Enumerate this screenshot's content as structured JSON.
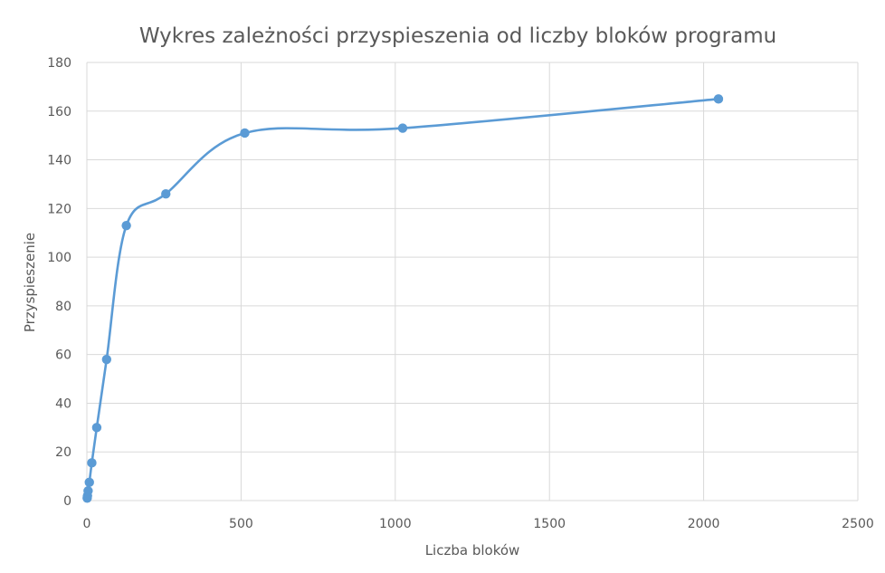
{
  "chart_data": {
    "type": "scatter",
    "title": "Wykres zależności przyspieszenia od liczby bloków programu",
    "xlabel": "Liczba bloków",
    "ylabel": "Przyspieszenie",
    "xlim": [
      0,
      2500
    ],
    "ylim": [
      0,
      180
    ],
    "xticks": [
      "0",
      "500",
      "1000",
      "1500",
      "2000",
      "2500"
    ],
    "yticks": [
      "0",
      "20",
      "40",
      "60",
      "80",
      "100",
      "120",
      "140",
      "160",
      "180"
    ],
    "grid": true,
    "legend": "none",
    "line_style": "smooth",
    "series": [
      {
        "color": "#5b9bd5",
        "x": [
          1,
          2,
          4,
          8,
          16,
          32,
          64,
          128,
          256,
          512,
          1024,
          2048
        ],
        "y": [
          1,
          2,
          4,
          7.5,
          15.5,
          30,
          58,
          113,
          126,
          151,
          153,
          165
        ]
      }
    ]
  }
}
